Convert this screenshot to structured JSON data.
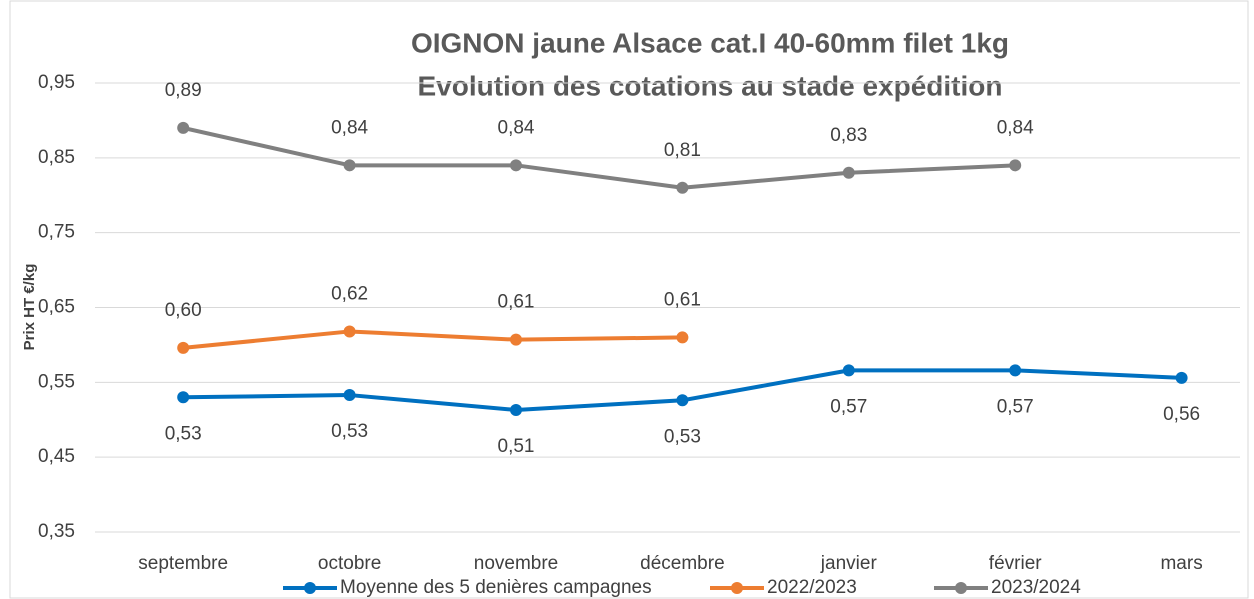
{
  "chart_data": {
    "type": "line",
    "title": "OIGNON jaune Alsace cat.I 40-60mm filet 1kg",
    "subtitle": "Evolution des cotations au stade expédition",
    "y_label": "Prix HT €/kg",
    "categories": [
      "septembre",
      "octobre",
      "novembre",
      "décembre",
      "janvier",
      "février",
      "mars"
    ],
    "series": [
      {
        "name": "Moyenne des 5 denières campagnes",
        "color": "#0070c0",
        "values": [
          0.53,
          0.533,
          0.513,
          0.526,
          0.566,
          0.566,
          0.556
        ],
        "value_labels": [
          "0,53",
          "0,53",
          "0,51",
          "0,53",
          "0,57",
          "0,57",
          "0,56"
        ]
      },
      {
        "name": "2022/2023",
        "color": "#ed7d31",
        "values": [
          0.596,
          0.618,
          0.607,
          0.61,
          null,
          null,
          null
        ],
        "value_labels": [
          "0,60",
          "0,62",
          "0,61",
          "0,61",
          null,
          null,
          null
        ]
      },
      {
        "name": "2023/2024",
        "color": "#808080",
        "values": [
          0.89,
          0.84,
          0.84,
          0.81,
          0.83,
          0.84,
          null
        ],
        "value_labels": [
          "0,89",
          "0,84",
          "0,84",
          "0,81",
          "0,83",
          "0,84",
          null
        ]
      }
    ],
    "ylim": [
      0.35,
      0.95
    ],
    "yticks": [
      {
        "value": 0.35,
        "label": "0,35"
      },
      {
        "value": 0.45,
        "label": "0,45"
      },
      {
        "value": 0.55,
        "label": "0,55"
      },
      {
        "value": 0.65,
        "label": "0,65"
      },
      {
        "value": 0.75,
        "label": "0,75"
      },
      {
        "value": 0.85,
        "label": "0,85"
      },
      {
        "value": 0.95,
        "label": "0,95"
      }
    ],
    "grid": true,
    "legend": "bottom"
  }
}
